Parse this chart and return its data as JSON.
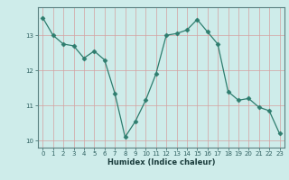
{
  "x": [
    0,
    1,
    2,
    3,
    4,
    5,
    6,
    7,
    8,
    9,
    10,
    11,
    12,
    13,
    14,
    15,
    16,
    17,
    18,
    19,
    20,
    21,
    22,
    23
  ],
  "y": [
    13.5,
    13.0,
    12.75,
    12.7,
    12.35,
    12.55,
    12.3,
    11.35,
    10.1,
    10.55,
    11.15,
    11.9,
    13.0,
    13.05,
    13.15,
    13.45,
    13.1,
    12.75,
    11.4,
    11.15,
    11.2,
    10.95,
    10.85,
    10.2
  ],
  "line_color": "#2e7d6e",
  "marker": "D",
  "marker_size": 2.5,
  "bg_color": "#ceecea",
  "grid_color_major": "#b8d8d6",
  "grid_color_minor": "#d4e8e6",
  "tick_label_color": "#2e6060",
  "xlabel": "Humidex (Indice chaleur)",
  "xlabel_color": "#1a3c3c",
  "ylim": [
    9.8,
    13.8
  ],
  "xlim": [
    -0.5,
    23.5
  ],
  "yticks": [
    10,
    11,
    12,
    13
  ],
  "xticks": [
    0,
    1,
    2,
    3,
    4,
    5,
    6,
    7,
    8,
    9,
    10,
    11,
    12,
    13,
    14,
    15,
    16,
    17,
    18,
    19,
    20,
    21,
    22,
    23
  ]
}
